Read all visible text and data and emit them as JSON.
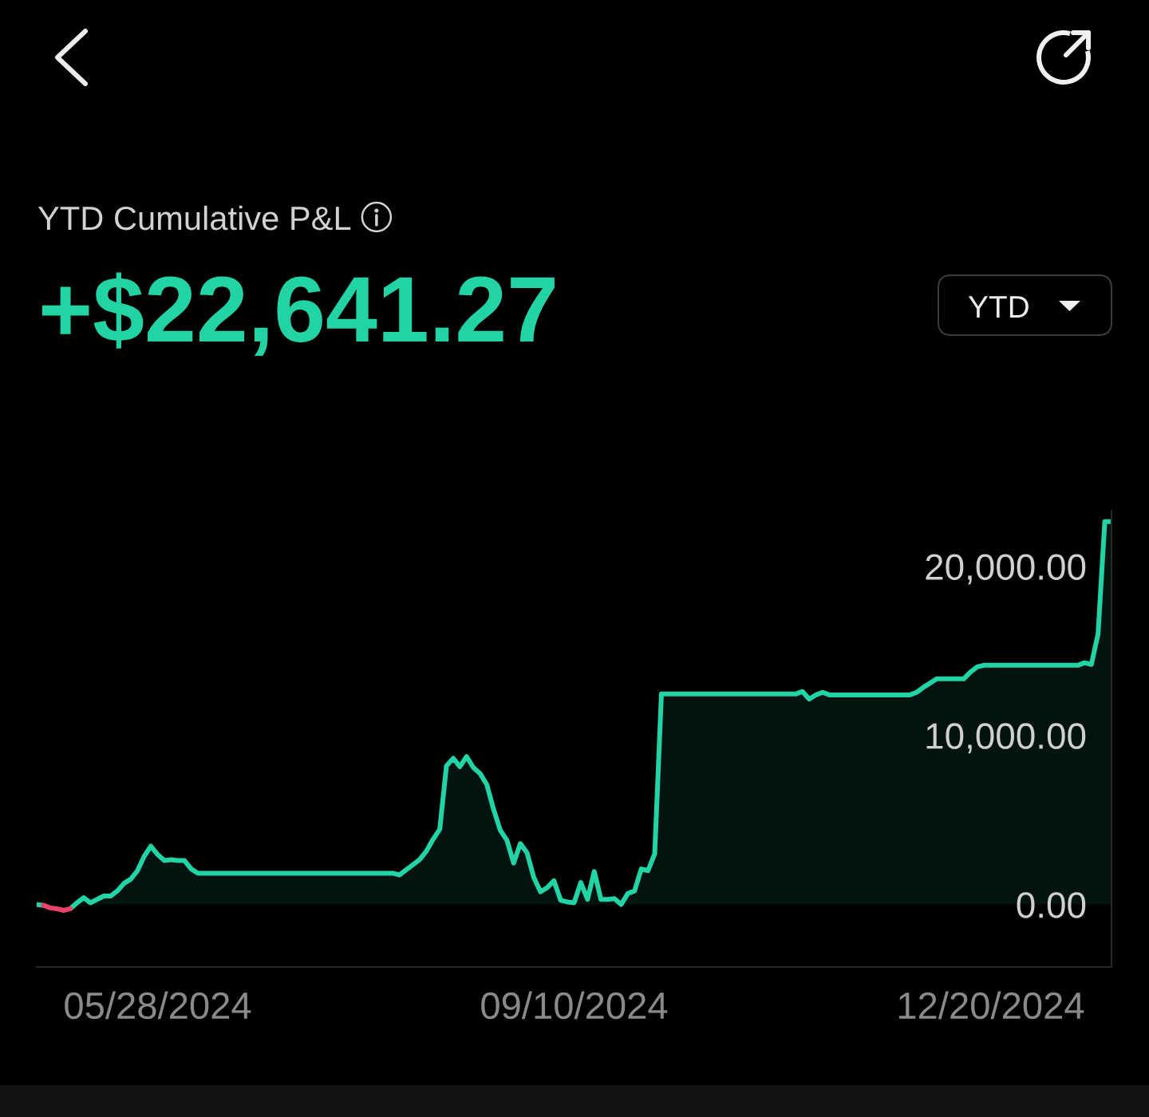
{
  "chart_data": {
    "type": "area",
    "title": "YTD Cumulative P&L",
    "subtitle": "+$22,641.27",
    "annotations": [
      "YTD"
    ],
    "categories": [
      null,
      null,
      null,
      null,
      null,
      null,
      null,
      null,
      null,
      null,
      null,
      null,
      null,
      null,
      null,
      null,
      null,
      null,
      "05/28/2024",
      null,
      null,
      null,
      null,
      null,
      null,
      null,
      null,
      null,
      null,
      null,
      null,
      null,
      null,
      null,
      null,
      null,
      null,
      null,
      null,
      null,
      null,
      null,
      null,
      null,
      null,
      null,
      null,
      null,
      null,
      null,
      null,
      null,
      null,
      null,
      null,
      null,
      null,
      null,
      null,
      null,
      null,
      null,
      null,
      null,
      null,
      null,
      null,
      null,
      null,
      null,
      null,
      null,
      null,
      null,
      null,
      null,
      null,
      null,
      null,
      null,
      "09/10/2024",
      null,
      null,
      null,
      null,
      null,
      null,
      null,
      null,
      null,
      null,
      null,
      null,
      null,
      null,
      null,
      null,
      null,
      null,
      null,
      null,
      null,
      null,
      null,
      null,
      null,
      null,
      null,
      null,
      null,
      null,
      null,
      null,
      null,
      null,
      null,
      null,
      null,
      null,
      null,
      null,
      null,
      null,
      null,
      null,
      null,
      null,
      null,
      null,
      null,
      null,
      null,
      null,
      null,
      null,
      null,
      null,
      null,
      null,
      null,
      null,
      null,
      "12/20/2024",
      null,
      null,
      null,
      null,
      null,
      null,
      null,
      null,
      null,
      null,
      null,
      null,
      null,
      null,
      null,
      null,
      null,
      null
    ],
    "ylim": [
      -3700,
      23300
    ],
    "yticks": [
      {
        "value": 0,
        "label": "0.00"
      },
      {
        "value": 10000,
        "label": "10,000.00"
      },
      {
        "value": 20000,
        "label": "20,000.00"
      }
    ],
    "series": [
      {
        "color": "#22d3a5",
        "values": [
          0,
          -50,
          null,
          null,
          null,
          -250,
          100,
          400,
          100,
          300,
          500,
          500,
          800,
          1250,
          1500,
          2000,
          2850,
          3450,
          2950,
          2600,
          2650,
          2600,
          2600,
          2100,
          1850,
          1850,
          1850,
          1850,
          1850,
          1850,
          1850,
          1850,
          1850,
          1850,
          1850,
          1850,
          1850,
          1850,
          1850,
          1850,
          1850,
          1850,
          1850,
          1850,
          1850,
          1850,
          1850,
          1850,
          1850,
          1850,
          1850,
          1850,
          1850,
          1850,
          1750,
          2050,
          2350,
          2650,
          3150,
          3850,
          4450,
          8200,
          8650,
          8150,
          8750,
          8100,
          7750,
          7100,
          5650,
          4400,
          3800,
          2450,
          3600,
          3050,
          1600,
          750,
          1000,
          1400,
          250,
          150,
          100,
          1300,
          300,
          1950,
          300,
          300,
          350,
          0,
          650,
          800,
          2100,
          2000,
          3000,
          12450,
          12450,
          12450,
          12450,
          12450,
          12450,
          12450,
          12450,
          12450,
          12450,
          12450,
          12450,
          12450,
          12450,
          12450,
          12450,
          12450,
          12450,
          12450,
          12450,
          12450,
          12600,
          12150,
          12400,
          12550,
          12400,
          12400,
          12400,
          12400,
          12400,
          12400,
          12400,
          12400,
          12400,
          12400,
          12400,
          12400,
          12400,
          12550,
          12850,
          13100,
          13350,
          13350,
          13350,
          13350,
          13350,
          13750,
          14050,
          14150,
          14150,
          14150,
          14150,
          14150,
          14150,
          14150,
          14150,
          14150,
          14150,
          14150,
          14150,
          14150,
          14150,
          14150,
          14300,
          14200,
          16000,
          22650,
          22650
        ]
      },
      {
        "type": "line",
        "color": "#e8416a",
        "values": [
          null,
          -50,
          -200,
          -250,
          -350,
          -250,
          null,
          null,
          null,
          null,
          null,
          null,
          null,
          null,
          null,
          null,
          null,
          null,
          null,
          null,
          null,
          null,
          null,
          null,
          null,
          null,
          null,
          null,
          null,
          null,
          null,
          null,
          null,
          null,
          null,
          null,
          null,
          null,
          null,
          null,
          null,
          null,
          null,
          null,
          null,
          null,
          null,
          null,
          null,
          null,
          null,
          null,
          null,
          null,
          null,
          null,
          null,
          null,
          null,
          null,
          null,
          null,
          null,
          null,
          null,
          null,
          null,
          null,
          null,
          null,
          null,
          null,
          null,
          null,
          null,
          null,
          null,
          null,
          null,
          null,
          null,
          null,
          null,
          null,
          null,
          null,
          null,
          null,
          null,
          null,
          null,
          null,
          null,
          null,
          null,
          null,
          null,
          null,
          null,
          null,
          null,
          null,
          null,
          null,
          null,
          null,
          null,
          null,
          null,
          null,
          null,
          null,
          null,
          null,
          null,
          null,
          null,
          null,
          null,
          null,
          null,
          null,
          null,
          null,
          null,
          null,
          null,
          null,
          null,
          null,
          null,
          null,
          null,
          null,
          null,
          null,
          null,
          null,
          null,
          null,
          null,
          null,
          null,
          null,
          null,
          null,
          null,
          null,
          null,
          null,
          null,
          null,
          null,
          null,
          null,
          null,
          null,
          null,
          null,
          null,
          null
        ]
      }
    ]
  }
}
